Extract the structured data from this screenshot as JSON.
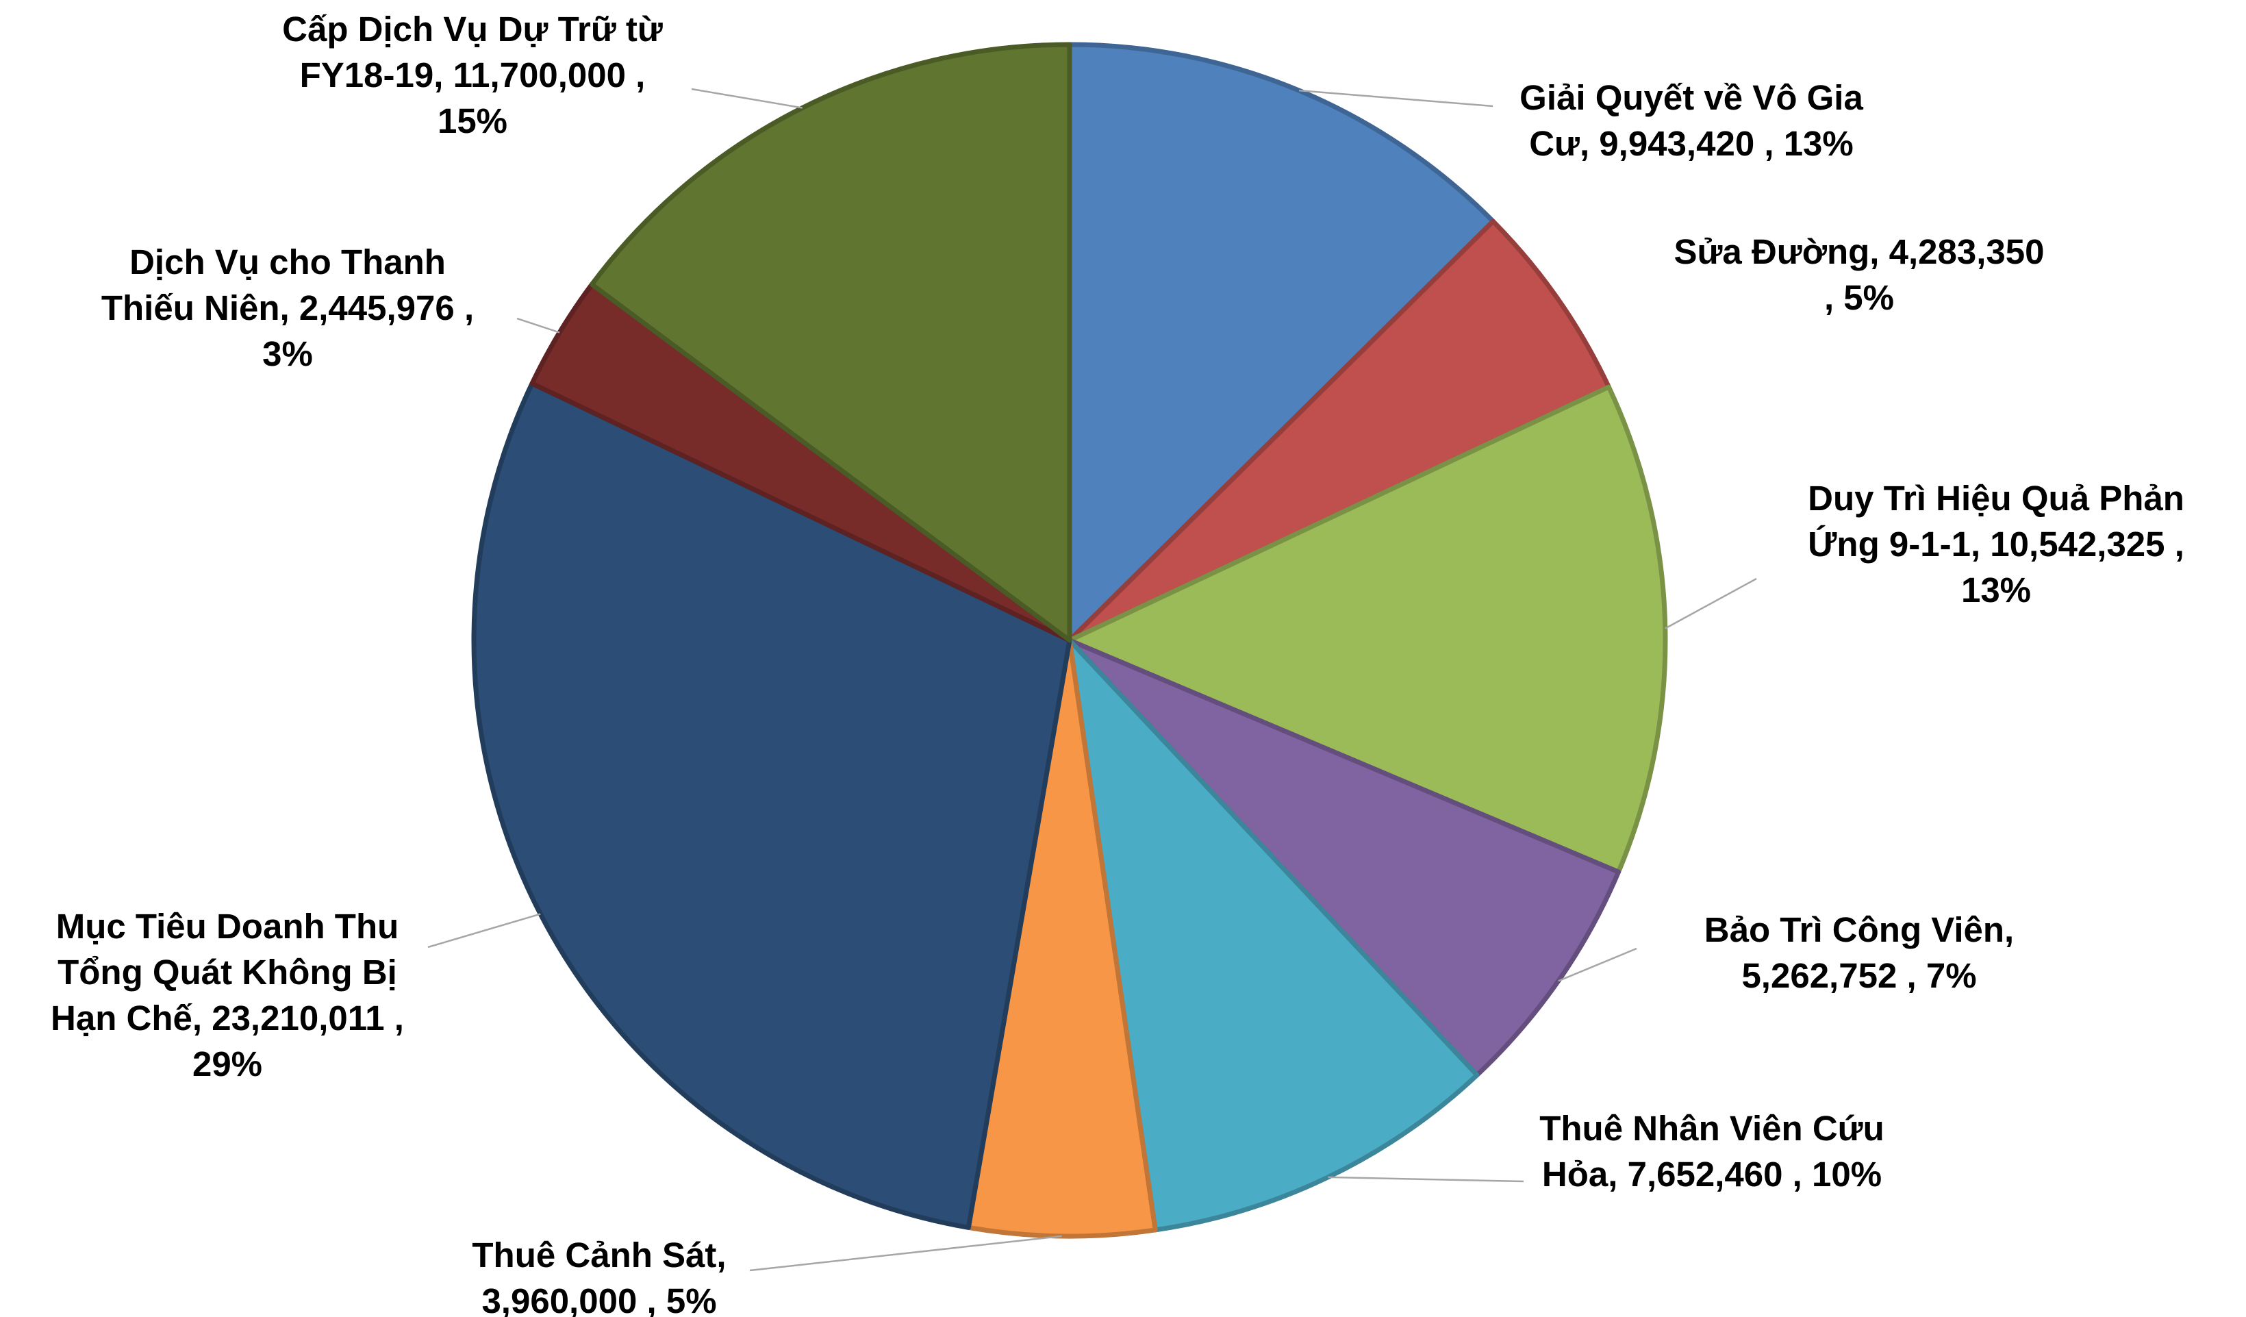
{
  "chart_data": {
    "type": "pie",
    "title": "",
    "slices": [
      {
        "label_lines": [
          "Giải Quyết về Vô Gia",
          "Cư,  9,943,420 , 13%"
        ],
        "name": "Giải Quyết về Vô Gia Cư",
        "value": 9943420,
        "percent": "13%",
        "color": "#4f81bd"
      },
      {
        "label_lines": [
          "Sửa Đường,  4,283,350",
          ", 5%"
        ],
        "name": "Sửa Đường",
        "value": 4283350,
        "percent": "5%",
        "color": "#c0504d"
      },
      {
        "label_lines": [
          "Duy Trì Hiệu Quả Phản",
          "Ứng 9-1-1,  10,542,325 ,",
          "13%"
        ],
        "name": "Duy Trì Hiệu Quả Phản Ứng 9-1-1",
        "value": 10542325,
        "percent": "13%",
        "color": "#9bbb59"
      },
      {
        "label_lines": [
          "Bảo Trì Công Viên,",
          "5,262,752 , 7%"
        ],
        "name": "Bảo Trì Công Viên",
        "value": 5262752,
        "percent": "7%",
        "color": "#8064a2"
      },
      {
        "label_lines": [
          "Thuê Nhân Viên Cứu",
          "Hỏa,  7,652,460 , 10%"
        ],
        "name": "Thuê Nhân Viên Cứu Hỏa",
        "value": 7652460,
        "percent": "10%",
        "color": "#4bacc6"
      },
      {
        "label_lines": [
          "Thuê Cảnh Sát,",
          "3,960,000 , 5%"
        ],
        "name": "Thuê Cảnh Sát",
        "value": 3960000,
        "percent": "5%",
        "color": "#f79646"
      },
      {
        "label_lines": [
          "Mục Tiêu Doanh Thu",
          "Tổng Quát Không Bị",
          "Hạn Chế,  23,210,011 ,",
          "29%"
        ],
        "name": "Mục Tiêu Doanh Thu Tổng Quát Không Bị Hạn Chế",
        "value": 23210011,
        "percent": "29%",
        "color": "#2c4d75"
      },
      {
        "label_lines": [
          "Dịch Vụ cho Thanh",
          "Thiếu Niên,  2,445,976 ,",
          "3%"
        ],
        "name": "Dịch Vụ cho Thanh Thiếu Niên",
        "value": 2445976,
        "percent": "3%",
        "color": "#772c2a"
      },
      {
        "label_lines": [
          "Cấp Dịch Vụ Dự Trữ từ",
          "FY18-19,  11,700,000 ,",
          "15%"
        ],
        "name": "Cấp Dịch Vụ Dự Trữ từ FY18-19",
        "value": 11700000,
        "percent": "15%",
        "color": "#5f7530"
      }
    ]
  }
}
